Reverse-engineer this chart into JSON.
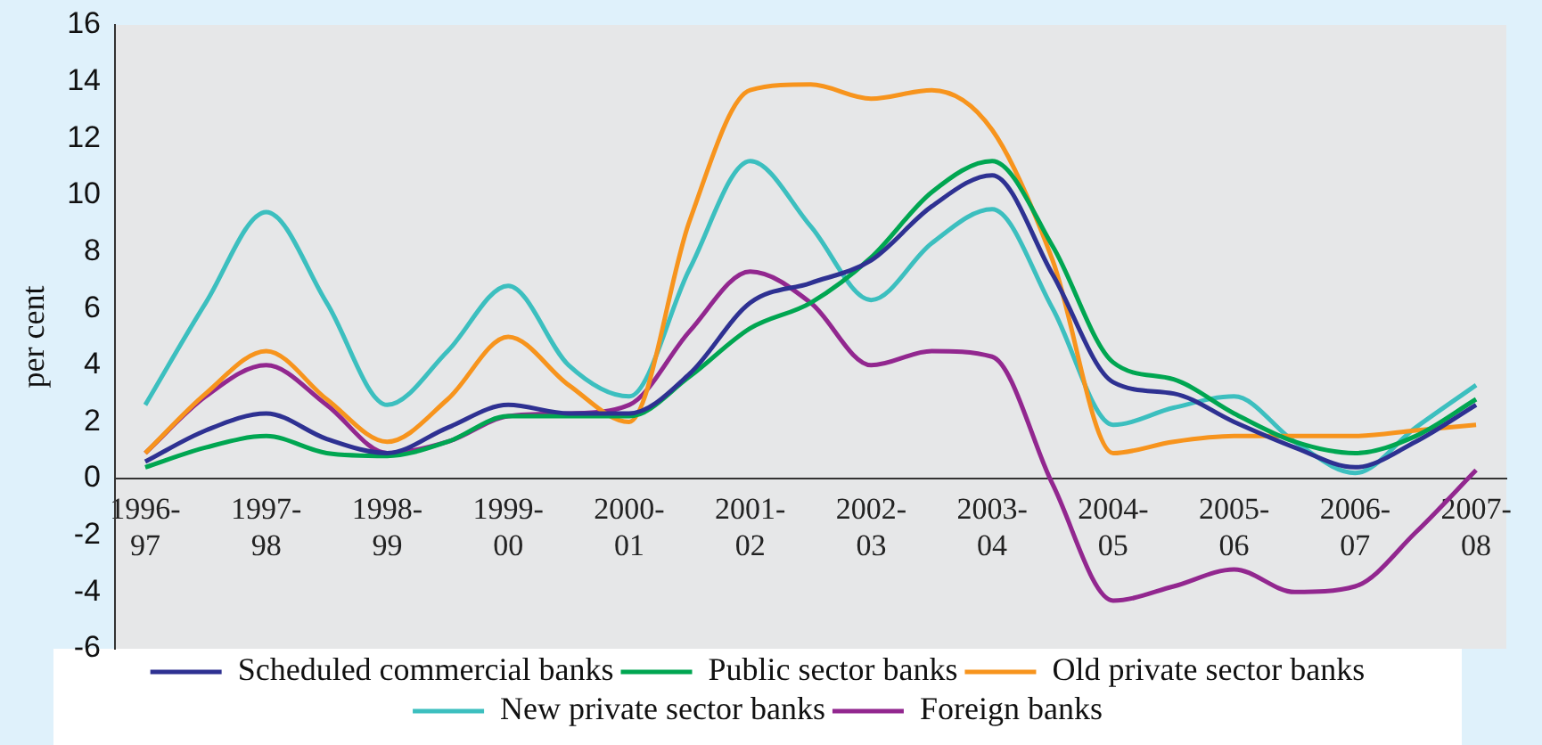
{
  "chart_data": {
    "type": "line",
    "ylabel": "per cent",
    "categories": [
      "1996-97",
      null,
      "1997-98",
      null,
      "1998-99",
      null,
      "1999-00",
      null,
      "2000-01",
      null,
      "2001-02",
      null,
      "2002-03",
      null,
      "2003-04",
      null,
      "2004-05",
      null,
      "2005-06",
      null,
      "2006-07",
      null,
      "2007-08"
    ],
    "ylim": [
      -6,
      16
    ],
    "yticks": [
      -6,
      -4,
      -2,
      0,
      2,
      4,
      6,
      8,
      10,
      12,
      14,
      16
    ],
    "grid": false,
    "legend": "bottom",
    "marker": "none",
    "line_style": "solid",
    "series": [
      {
        "name": "Scheduled commercial banks",
        "color": "#2e3192",
        "values": [
          0.6,
          1.7,
          2.3,
          1.4,
          0.9,
          1.8,
          2.6,
          2.3,
          2.3,
          3.7,
          6.2,
          6.9,
          7.7,
          9.6,
          10.7,
          7.2,
          3.4,
          3.0,
          2.0,
          1.1,
          0.4,
          1.3,
          2.6
        ]
      },
      {
        "name": "Public sector banks",
        "color": "#00a651",
        "values": [
          0.4,
          1.1,
          1.5,
          0.9,
          0.8,
          1.3,
          2.2,
          2.2,
          2.2,
          3.6,
          5.3,
          6.2,
          7.8,
          10.1,
          11.2,
          8.2,
          4.1,
          3.5,
          2.3,
          1.3,
          0.9,
          1.5,
          2.8
        ]
      },
      {
        "name": "Old private sector banks",
        "color": "#f7941d",
        "values": [
          0.9,
          3.0,
          4.5,
          2.8,
          1.3,
          2.8,
          5.0,
          3.3,
          2.0,
          9.1,
          13.7,
          13.9,
          13.4,
          13.7,
          12.3,
          7.7,
          0.9,
          1.3,
          1.5,
          1.5,
          1.5,
          1.7,
          1.9
        ]
      },
      {
        "name": "New private sector banks",
        "color": "#3cbfbf",
        "values": [
          2.6,
          6.2,
          9.4,
          6.2,
          2.6,
          4.5,
          6.8,
          4.0,
          2.9,
          7.4,
          11.2,
          8.9,
          6.3,
          8.3,
          9.5,
          6.0,
          1.9,
          2.5,
          2.9,
          1.3,
          0.2,
          1.8,
          3.3
        ]
      },
      {
        "name": "Foreign banks",
        "color": "#92278f",
        "values": [
          0.9,
          2.9,
          4.0,
          2.6,
          0.9,
          1.3,
          2.2,
          2.3,
          2.6,
          5.2,
          7.3,
          6.2,
          4.0,
          4.5,
          4.3,
          -0.2,
          -4.3,
          -3.8,
          -3.2,
          -4.0,
          -3.8,
          -1.9,
          0.3
        ]
      }
    ]
  }
}
